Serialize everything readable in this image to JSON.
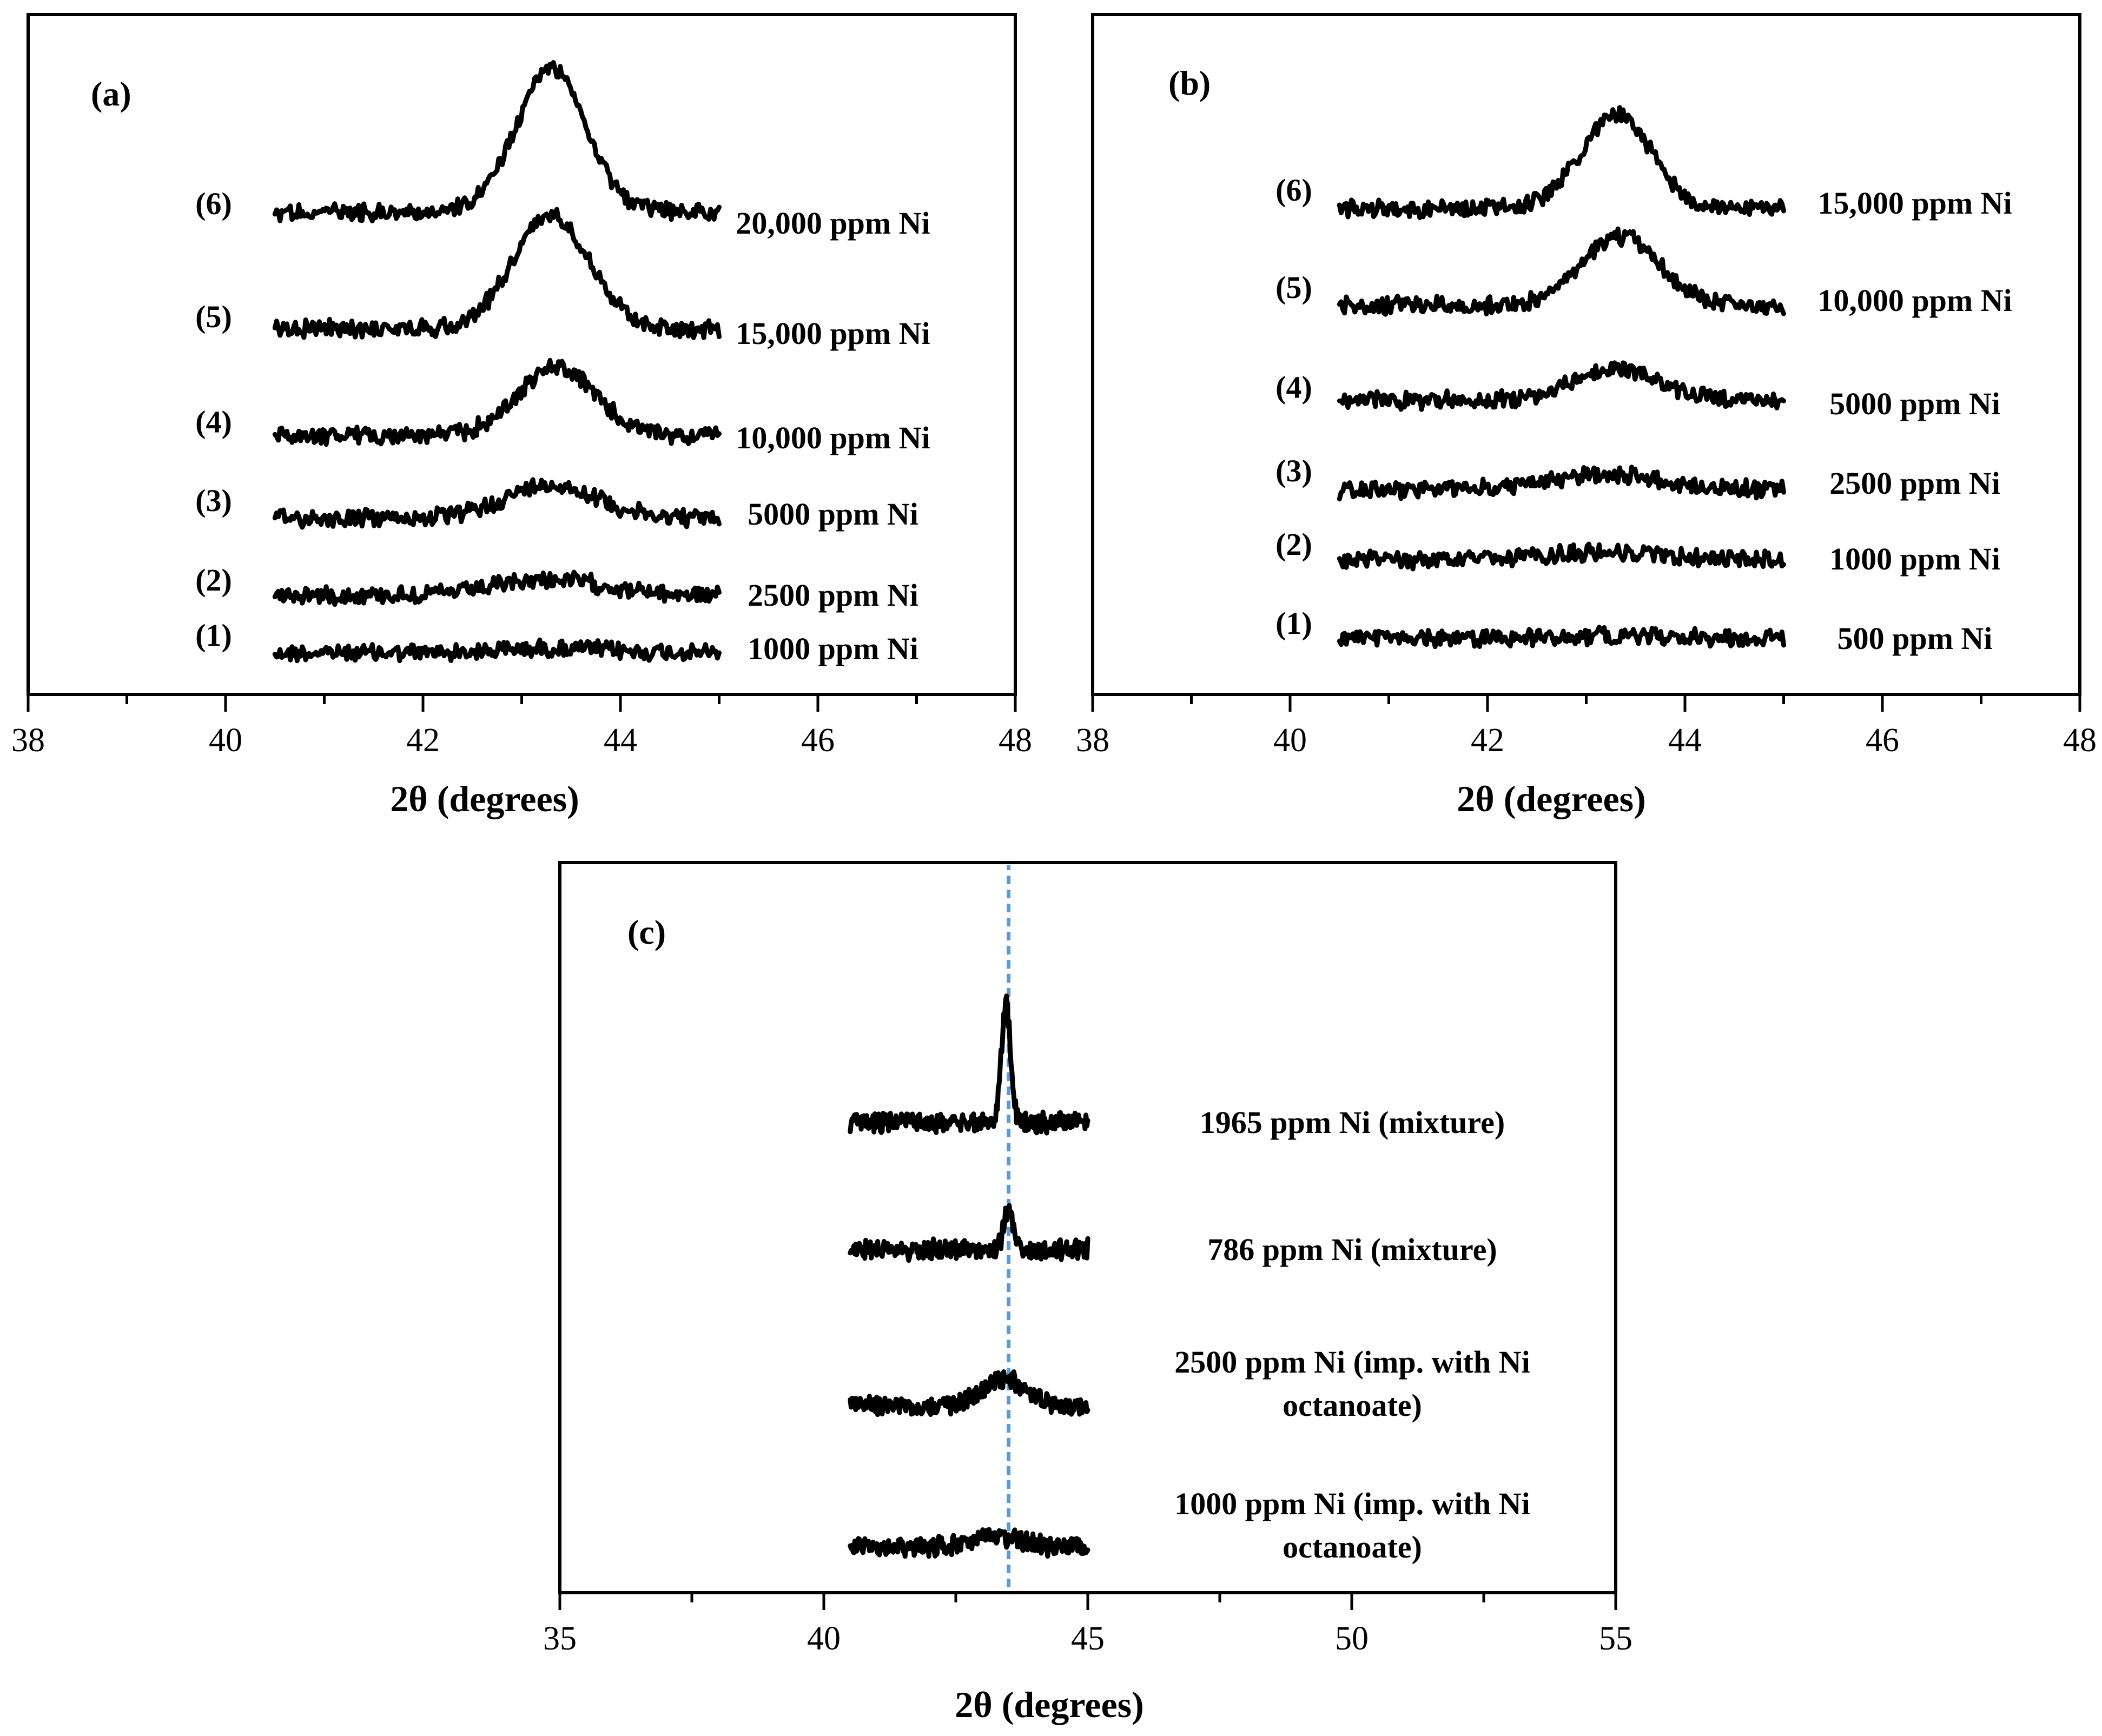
{
  "chart_data": [
    {
      "type": "line",
      "panel": "(a)",
      "xlabel": "2θ (degrees)",
      "ylabel": "",
      "xlim": [
        38,
        48
      ],
      "xticks": [
        38,
        40,
        42,
        44,
        46,
        48
      ],
      "minor_ticks": [
        39,
        41,
        43,
        45,
        47
      ],
      "x_range": [
        40.5,
        45.0
      ],
      "series": [
        {
          "number": "(1)",
          "name": "1000 ppm Ni",
          "peak_center": 43.3,
          "peak_height": 0.03,
          "peak_width": 0.75
        },
        {
          "number": "(2)",
          "name": "2500 ppm Ni",
          "peak_center": 43.3,
          "peak_height": 0.1,
          "peak_width": 0.75
        },
        {
          "number": "(3)",
          "name": "5000 ppm Ni",
          "peak_center": 43.3,
          "peak_height": 0.22,
          "peak_width": 0.65
        },
        {
          "number": "(4)",
          "name": "10,000 ppm Ni",
          "peak_center": 43.35,
          "peak_height": 0.45,
          "peak_width": 0.55
        },
        {
          "number": "(5)",
          "name": "15,000 ppm Ni",
          "peak_center": 43.3,
          "peak_height": 0.75,
          "peak_width": 0.55
        },
        {
          "number": "(6)",
          "name": "20,000 ppm Ni",
          "peak_center": 43.3,
          "peak_height": 0.95,
          "peak_width": 0.5
        }
      ]
    },
    {
      "type": "line",
      "panel": "(b)",
      "xlabel": "2θ (degrees)",
      "ylabel": "",
      "xlim": [
        38,
        48
      ],
      "xticks": [
        38,
        40,
        42,
        44,
        46,
        48
      ],
      "minor_ticks": [
        39,
        41,
        43,
        45,
        47
      ],
      "x_range": [
        40.5,
        45.0
      ],
      "series": [
        {
          "number": "(1)",
          "name": "500 ppm Ni",
          "peak_center": 43.3,
          "peak_height": 0.02,
          "peak_width": 0.75
        },
        {
          "number": "(2)",
          "name": "1000 ppm Ni",
          "peak_center": 43.2,
          "peak_height": 0.06,
          "peak_width": 0.75
        },
        {
          "number": "(3)",
          "name": "2500 ppm Ni",
          "peak_center": 43.2,
          "peak_height": 0.12,
          "peak_width": 0.75
        },
        {
          "number": "(4)",
          "name": "5000 ppm Ni",
          "peak_center": 43.3,
          "peak_height": 0.25,
          "peak_width": 0.6
        },
        {
          "number": "(5)",
          "name": "10,000 ppm Ni",
          "peak_center": 43.35,
          "peak_height": 0.55,
          "peak_width": 0.55
        },
        {
          "number": "(6)",
          "name": "15,000 ppm Ni",
          "peak_center": 43.3,
          "peak_height": 0.75,
          "peak_width": 0.5
        }
      ]
    },
    {
      "type": "line",
      "panel": "(c)",
      "xlabel": "2θ (degrees)",
      "ylabel": "",
      "xlim": [
        35,
        55
      ],
      "xticks": [
        35,
        40,
        45,
        50,
        55
      ],
      "minor_ticks": [
        37.5,
        42.5,
        47.5,
        52.5
      ],
      "x_range": [
        40.5,
        45.0
      ],
      "reference_line_x": 43.5,
      "series": [
        {
          "name_lines": [
            "1000 ppm Ni (imp. with Ni",
            "octanoate)"
          ],
          "peak_center": 43.3,
          "peak_height": 0.08,
          "peak_width": 0.6
        },
        {
          "name_lines": [
            "2500 ppm Ni (imp. with Ni",
            "octanoate)"
          ],
          "peak_center": 43.4,
          "peak_height": 0.22,
          "peak_width": 0.6
        },
        {
          "name_lines": [
            "786 ppm Ni (mixture)"
          ],
          "peak_center": 43.5,
          "peak_height": 0.35,
          "peak_width": 0.12
        },
        {
          "name_lines": [
            "1965  ppm Ni (mixture)"
          ],
          "peak_center": 43.45,
          "peak_height": 1.0,
          "peak_width": 0.12
        }
      ]
    }
  ]
}
